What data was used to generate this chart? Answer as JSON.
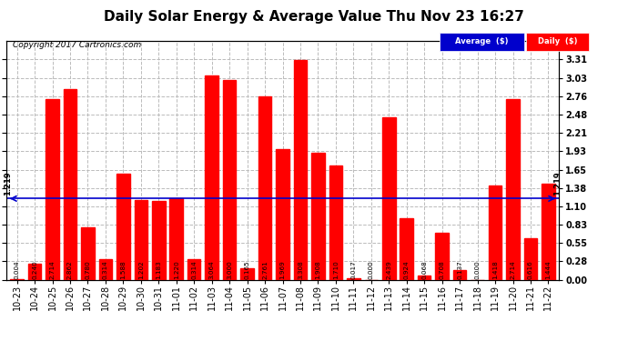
{
  "title": "Daily Solar Energy & Average Value Thu Nov 23 16:27",
  "copyright": "Copyright 2017 Cartronics.com",
  "categories": [
    "10-23",
    "10-24",
    "10-25",
    "10-26",
    "10-27",
    "10-28",
    "10-29",
    "10-30",
    "10-31",
    "11-01",
    "11-02",
    "11-03",
    "11-04",
    "11-05",
    "11-06",
    "11-07",
    "11-08",
    "11-09",
    "11-10",
    "11-11",
    "11-12",
    "11-13",
    "11-14",
    "11-15",
    "11-16",
    "11-17",
    "11-18",
    "11-19",
    "11-20",
    "11-21",
    "11-22"
  ],
  "values": [
    0.004,
    0.24,
    2.714,
    2.862,
    0.78,
    0.314,
    1.588,
    1.202,
    1.183,
    1.22,
    0.314,
    3.064,
    3.0,
    0.165,
    2.761,
    1.969,
    3.308,
    1.908,
    1.71,
    0.017,
    0.0,
    2.439,
    0.924,
    0.068,
    0.708,
    0.137,
    0.0,
    1.418,
    2.714,
    0.616,
    1.444
  ],
  "average_value": 1.219,
  "bar_color": "#FF0000",
  "average_line_color": "#0000CC",
  "background_color": "#FFFFFF",
  "grid_color": "#BBBBBB",
  "ylim_min": 0.0,
  "ylim_max": 3.59,
  "yticks": [
    0.0,
    0.28,
    0.55,
    0.83,
    1.1,
    1.38,
    1.65,
    1.93,
    2.21,
    2.48,
    2.76,
    3.03,
    3.31
  ],
  "title_fontsize": 11,
  "bar_label_fontsize": 5.2,
  "tick_fontsize": 7,
  "ylabel_fontsize": 7,
  "legend_avg_color": "#0000CC",
  "legend_daily_color": "#FF0000",
  "legend_text_color": "#FFFFFF"
}
